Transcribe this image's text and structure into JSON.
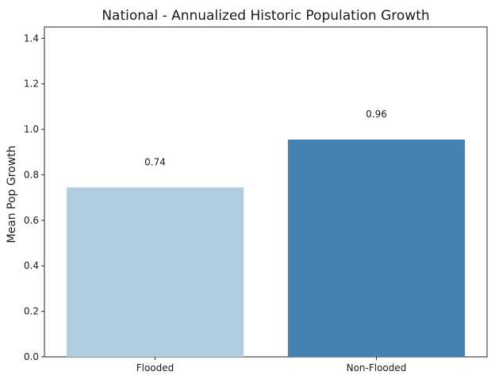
{
  "chart_data": {
    "type": "bar",
    "title": "National - Annualized Historic Population Growth",
    "xlabel": "",
    "ylabel": "Mean Pop Growth",
    "categories": [
      "Flooded",
      "Non-Flooded"
    ],
    "values": [
      0.745,
      0.955
    ],
    "data_labels": [
      "0.74",
      "0.96"
    ],
    "colors": [
      "#b3cfdf",
      "#4682b0"
    ],
    "ylim": [
      0,
      1.45
    ],
    "yticks": [
      0.0,
      0.2,
      0.4,
      0.6,
      0.8,
      1.0,
      1.2,
      1.4
    ],
    "ytick_labels": [
      "0.0",
      "0.2",
      "0.4",
      "0.6",
      "0.8",
      "1.0",
      "1.2",
      "1.4"
    ],
    "grid": false,
    "legend": "none"
  }
}
